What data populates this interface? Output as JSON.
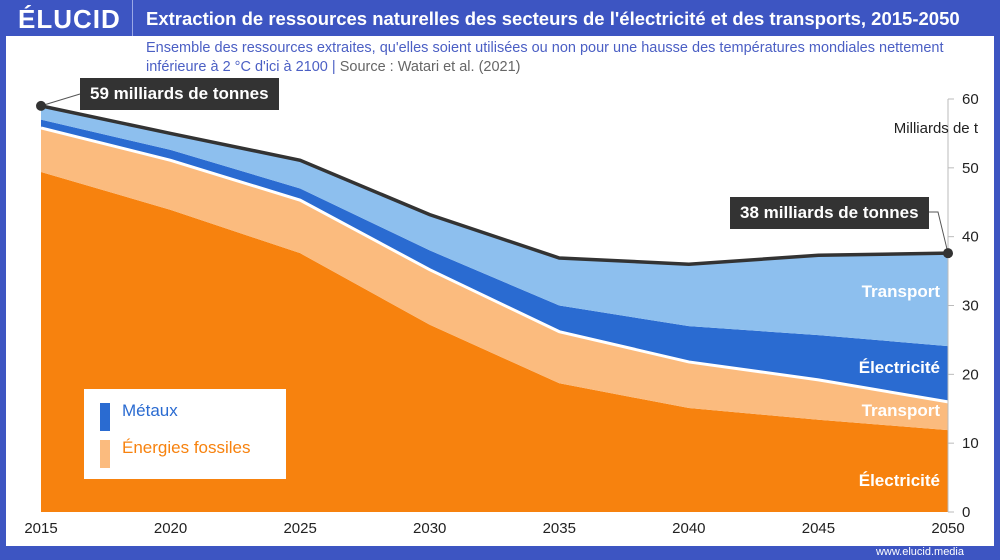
{
  "brand": "ÉLUCID",
  "title": "Extraction de ressources naturelles des secteurs de l'électricité et des transports, 2015-2050",
  "subtitle": "Ensemble des ressources extraites, qu'elles soient utilisées ou non pour une hausse des températures mondiales nettement inférieure à 2 °C d'ici à 2100 |",
  "source": "Source : Watari et al. (2021)",
  "footer": "www.elucid.media",
  "callouts": {
    "start": "59 milliards de tonnes",
    "end": "38 milliards de tonnes"
  },
  "legend": [
    {
      "label": "Métaux",
      "color": "#2a6bd1"
    },
    {
      "label": "Énergies fossiles",
      "color": "#f7820e"
    }
  ],
  "chart_data": {
    "type": "area",
    "stacked": true,
    "x": [
      2015,
      2020,
      2025,
      2030,
      2035,
      2040,
      2045,
      2050
    ],
    "ylabel": "Milliards de t",
    "ylim": [
      0,
      60
    ],
    "yticks": [
      0,
      10,
      20,
      30,
      40,
      50,
      60
    ],
    "xticks": [
      2015,
      2020,
      2025,
      2030,
      2035,
      2040,
      2045,
      2050
    ],
    "y_axis_position": "right",
    "series": [
      {
        "name": "Électricité",
        "group": "Énergies fossiles",
        "color": "#f7820e",
        "values": [
          49.4,
          43.9,
          37.6,
          27.2,
          18.7,
          15.1,
          13.4,
          11.9
        ]
      },
      {
        "name": "Transport",
        "group": "Énergies fossiles",
        "color": "#fbbb7e",
        "values": [
          6.4,
          7.2,
          7.7,
          8.0,
          7.5,
          6.7,
          5.8,
          4.1
        ]
      },
      {
        "name": "Électricité",
        "group": "Métaux",
        "color": "#2a6bd1",
        "values": [
          1.2,
          1.5,
          1.7,
          2.8,
          3.8,
          5.2,
          6.5,
          8.1
        ]
      },
      {
        "name": "Transport",
        "group": "Métaux",
        "color": "#8dbfee",
        "values": [
          2.0,
          2.4,
          4.1,
          5.2,
          6.9,
          9.0,
          11.6,
          13.5
        ]
      }
    ]
  }
}
